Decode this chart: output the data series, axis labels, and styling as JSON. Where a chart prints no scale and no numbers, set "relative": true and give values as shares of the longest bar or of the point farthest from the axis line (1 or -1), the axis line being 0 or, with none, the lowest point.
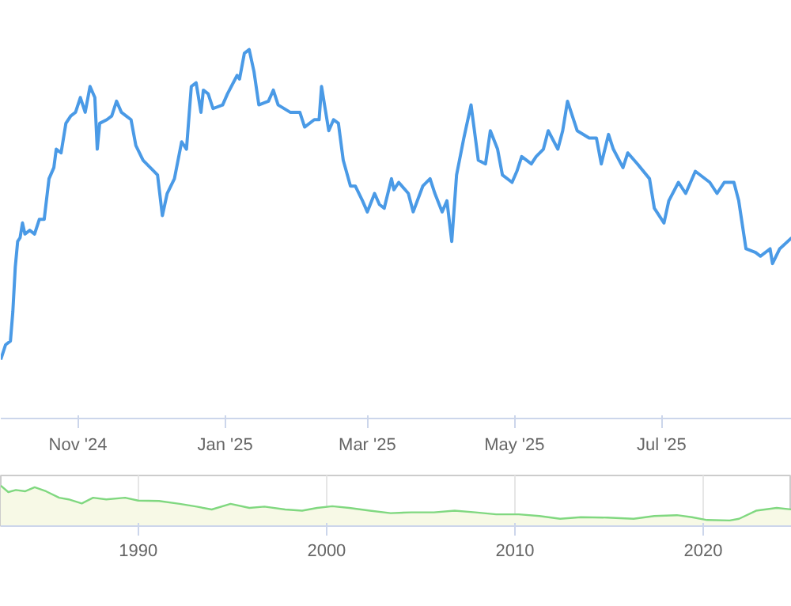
{
  "chart_data": [
    {
      "type": "line",
      "relative": true,
      "grid": false,
      "marker": "none",
      "line_style": "solid",
      "xlim": [
        "2024-09-30",
        "2025-08-24"
      ],
      "xticks": [
        {
          "value": "2024-11-01",
          "label": "Nov '24"
        },
        {
          "value": "2025-01-01",
          "label": "Jan '25"
        },
        {
          "value": "2025-03-01",
          "label": "Mar '25"
        },
        {
          "value": "2025-05-01",
          "label": "May '25"
        },
        {
          "value": "2025-07-01",
          "label": "Jul '25"
        }
      ],
      "x": [
        "2024-09-30",
        "2024-10-02",
        "2024-10-04",
        "2024-10-05",
        "2024-10-06",
        "2024-10-07",
        "2024-10-08",
        "2024-10-09",
        "2024-10-10",
        "2024-10-12",
        "2024-10-14",
        "2024-10-16",
        "2024-10-18",
        "2024-10-20",
        "2024-10-22",
        "2024-10-23",
        "2024-10-25",
        "2024-10-27",
        "2024-10-29",
        "2024-10-31",
        "2024-11-02",
        "2024-11-04",
        "2024-11-06",
        "2024-11-08",
        "2024-11-09",
        "2024-11-10",
        "2024-11-13",
        "2024-11-15",
        "2024-11-17",
        "2024-11-19",
        "2024-11-21",
        "2024-11-23",
        "2024-11-25",
        "2024-11-28",
        "2024-12-01",
        "2024-12-04",
        "2024-12-06",
        "2024-12-08",
        "2024-12-11",
        "2024-12-14",
        "2024-12-16",
        "2024-12-18",
        "2024-12-20",
        "2024-12-22",
        "2024-12-23",
        "2024-12-25",
        "2024-12-27",
        "2024-12-31",
        "2025-01-02",
        "2025-01-06",
        "2025-01-07",
        "2025-01-09",
        "2025-01-11",
        "2025-01-13",
        "2025-01-15",
        "2025-01-19",
        "2025-01-21",
        "2025-01-23",
        "2025-01-28",
        "2025-02-01",
        "2025-02-03",
        "2025-02-07",
        "2025-02-09",
        "2025-02-10",
        "2025-02-13",
        "2025-02-15",
        "2025-02-17",
        "2025-02-19",
        "2025-02-22",
        "2025-02-24",
        "2025-02-27",
        "2025-03-01",
        "2025-03-04",
        "2025-03-06",
        "2025-03-08",
        "2025-03-11",
        "2025-03-12",
        "2025-03-14",
        "2025-03-18",
        "2025-03-20",
        "2025-03-24",
        "2025-03-27",
        "2025-03-29",
        "2025-04-01",
        "2025-04-03",
        "2025-04-05",
        "2025-04-07",
        "2025-04-10",
        "2025-04-13",
        "2025-04-16",
        "2025-04-19",
        "2025-04-21",
        "2025-04-24",
        "2025-04-26",
        "2025-04-30",
        "2025-05-02",
        "2025-05-04",
        "2025-05-08",
        "2025-05-10",
        "2025-05-13",
        "2025-05-15",
        "2025-05-19",
        "2025-05-21",
        "2025-05-23",
        "2025-05-27",
        "2025-06-01",
        "2025-06-04",
        "2025-06-06",
        "2025-06-09",
        "2025-06-11",
        "2025-06-15",
        "2025-06-17",
        "2025-06-21",
        "2025-06-26",
        "2025-06-28",
        "2025-07-02",
        "2025-07-04",
        "2025-07-08",
        "2025-07-11",
        "2025-07-15",
        "2025-07-21",
        "2025-07-24",
        "2025-07-27",
        "2025-07-31",
        "2025-08-02",
        "2025-08-05",
        "2025-08-09",
        "2025-08-11",
        "2025-08-15",
        "2025-08-16",
        "2025-08-19",
        "2025-08-24"
      ],
      "series": [
        {
          "color": "#4a9ae6",
          "values": [
            0.16,
            0.2,
            0.21,
            0.29,
            0.41,
            0.48,
            0.49,
            0.53,
            0.5,
            0.51,
            0.5,
            0.54,
            0.54,
            0.65,
            0.68,
            0.73,
            0.72,
            0.8,
            0.82,
            0.83,
            0.87,
            0.83,
            0.9,
            0.87,
            0.73,
            0.8,
            0.81,
            0.82,
            0.86,
            0.83,
            0.82,
            0.81,
            0.74,
            0.7,
            0.68,
            0.66,
            0.55,
            0.61,
            0.65,
            0.75,
            0.73,
            0.9,
            0.91,
            0.83,
            0.89,
            0.88,
            0.84,
            0.85,
            0.88,
            0.93,
            0.92,
            0.99,
            1.0,
            0.94,
            0.85,
            0.86,
            0.89,
            0.85,
            0.83,
            0.83,
            0.79,
            0.81,
            0.81,
            0.9,
            0.78,
            0.81,
            0.8,
            0.7,
            0.63,
            0.63,
            0.59,
            0.56,
            0.61,
            0.58,
            0.57,
            0.65,
            0.62,
            0.64,
            0.61,
            0.56,
            0.63,
            0.65,
            0.61,
            0.56,
            0.59,
            0.48,
            0.66,
            0.76,
            0.85,
            0.7,
            0.69,
            0.78,
            0.73,
            0.66,
            0.64,
            0.67,
            0.71,
            0.69,
            0.71,
            0.73,
            0.78,
            0.73,
            0.78,
            0.86,
            0.78,
            0.76,
            0.76,
            0.69,
            0.77,
            0.73,
            0.68,
            0.72,
            0.69,
            0.65,
            0.57,
            0.53,
            0.59,
            0.64,
            0.61,
            0.67,
            0.64,
            0.61,
            0.64,
            0.64,
            0.59,
            0.46,
            0.45,
            0.44,
            0.46,
            0.42,
            0.46,
            0.49
          ]
        }
      ]
    },
    {
      "type": "area",
      "relative": true,
      "grid": "x",
      "xlim": [
        1982.7,
        2024.7
      ],
      "xticks": [
        1990,
        2000,
        2010,
        2020
      ],
      "x": [
        1982.7,
        1983.1,
        1983.5,
        1984.0,
        1984.5,
        1985.1,
        1985.8,
        1986.3,
        1987.0,
        1987.6,
        1988.3,
        1989.3,
        1990.0,
        1991.1,
        1992.2,
        1993.1,
        1993.9,
        1994.9,
        1995.9,
        1996.7,
        1997.8,
        1998.7,
        1999.5,
        2000.3,
        2001.2,
        2002.3,
        2003.4,
        2004.5,
        2005.7,
        2006.8,
        2007.9,
        2009.0,
        2010.2,
        2011.3,
        2012.4,
        2013.5,
        2014.9,
        2016.3,
        2017.4,
        2018.6,
        2019.4,
        2020.2,
        2021.4,
        2021.9,
        2022.8,
        2023.9,
        2024.7
      ],
      "series": [
        {
          "color": "#80d880",
          "values": [
            1.0,
            0.84,
            0.89,
            0.86,
            0.96,
            0.86,
            0.7,
            0.66,
            0.56,
            0.7,
            0.66,
            0.7,
            0.63,
            0.62,
            0.55,
            0.48,
            0.41,
            0.55,
            0.45,
            0.48,
            0.41,
            0.38,
            0.45,
            0.49,
            0.45,
            0.38,
            0.32,
            0.34,
            0.34,
            0.38,
            0.34,
            0.29,
            0.29,
            0.25,
            0.18,
            0.22,
            0.21,
            0.18,
            0.25,
            0.27,
            0.22,
            0.15,
            0.14,
            0.18,
            0.38,
            0.45,
            0.41
          ]
        }
      ]
    }
  ]
}
